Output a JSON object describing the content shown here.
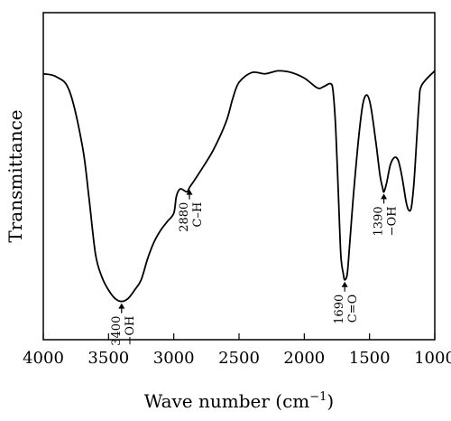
{
  "chart_data": {
    "type": "line",
    "title": "",
    "xlabel": "Wave number (cm",
    "xlabel_exp": "−1",
    "xlabel_close": ")",
    "ylabel": "Transmittance",
    "xlim": [
      4000,
      1000
    ],
    "x_reversed": true,
    "grid": false,
    "legend": "none",
    "xticks": [
      4000,
      3500,
      3000,
      2500,
      2000,
      1500,
      1000
    ],
    "xtick_labels": [
      "4000",
      "3500",
      "3000",
      "2500",
      "2000",
      "1500",
      "1000"
    ],
    "y_unit_note": "relative transmittance (no tick labels printed; 0 = plot bottom, 1 = plot top)",
    "ylim": [
      0,
      1
    ],
    "series": [
      {
        "color": "#000000",
        "points": [
          [
            4000,
            0.813
          ],
          [
            3900,
            0.804
          ],
          [
            3800,
            0.761
          ],
          [
            3700,
            0.591
          ],
          [
            3650,
            0.435
          ],
          [
            3600,
            0.261
          ],
          [
            3550,
            0.191
          ],
          [
            3500,
            0.152
          ],
          [
            3450,
            0.126
          ],
          [
            3400,
            0.117
          ],
          [
            3350,
            0.126
          ],
          [
            3300,
            0.152
          ],
          [
            3250,
            0.183
          ],
          [
            3200,
            0.248
          ],
          [
            3150,
            0.3
          ],
          [
            3100,
            0.335
          ],
          [
            3050,
            0.361
          ],
          [
            3000,
            0.387
          ],
          [
            2980,
            0.439
          ],
          [
            2950,
            0.461
          ],
          [
            2900,
            0.452
          ],
          [
            2880,
            0.465
          ],
          [
            2850,
            0.483
          ],
          [
            2800,
            0.513
          ],
          [
            2700,
            0.578
          ],
          [
            2600,
            0.665
          ],
          [
            2550,
            0.735
          ],
          [
            2500,
            0.787
          ],
          [
            2400,
            0.817
          ],
          [
            2300,
            0.813
          ],
          [
            2200,
            0.822
          ],
          [
            2100,
            0.817
          ],
          [
            2000,
            0.8
          ],
          [
            1900,
            0.77
          ],
          [
            1850,
            0.774
          ],
          [
            1800,
            0.783
          ],
          [
            1780,
            0.761
          ],
          [
            1760,
            0.652
          ],
          [
            1740,
            0.461
          ],
          [
            1720,
            0.261
          ],
          [
            1700,
            0.2
          ],
          [
            1690,
            0.183
          ],
          [
            1670,
            0.204
          ],
          [
            1650,
            0.304
          ],
          [
            1620,
            0.457
          ],
          [
            1580,
            0.63
          ],
          [
            1550,
            0.722
          ],
          [
            1520,
            0.748
          ],
          [
            1490,
            0.713
          ],
          [
            1450,
            0.6
          ],
          [
            1420,
            0.504
          ],
          [
            1400,
            0.465
          ],
          [
            1390,
            0.452
          ],
          [
            1370,
            0.478
          ],
          [
            1340,
            0.535
          ],
          [
            1310,
            0.557
          ],
          [
            1280,
            0.548
          ],
          [
            1250,
            0.496
          ],
          [
            1220,
            0.422
          ],
          [
            1200,
            0.396
          ],
          [
            1180,
            0.404
          ],
          [
            1160,
            0.478
          ],
          [
            1140,
            0.6
          ],
          [
            1120,
            0.726
          ],
          [
            1100,
            0.778
          ],
          [
            1000,
            0.822
          ]
        ]
      }
    ],
    "annotations": [
      {
        "x": 3400,
        "y": 0.117,
        "value": "3400",
        "group": "−OH",
        "side": "below"
      },
      {
        "x": 2880,
        "y": 0.465,
        "value": "2880",
        "group": "C–H",
        "side": "below"
      },
      {
        "x": 1690,
        "y": 0.183,
        "value": "1690",
        "group": "C=O",
        "side": "below"
      },
      {
        "x": 1390,
        "y": 0.452,
        "value": "1390",
        "group": "−OH",
        "side": "below"
      }
    ]
  }
}
